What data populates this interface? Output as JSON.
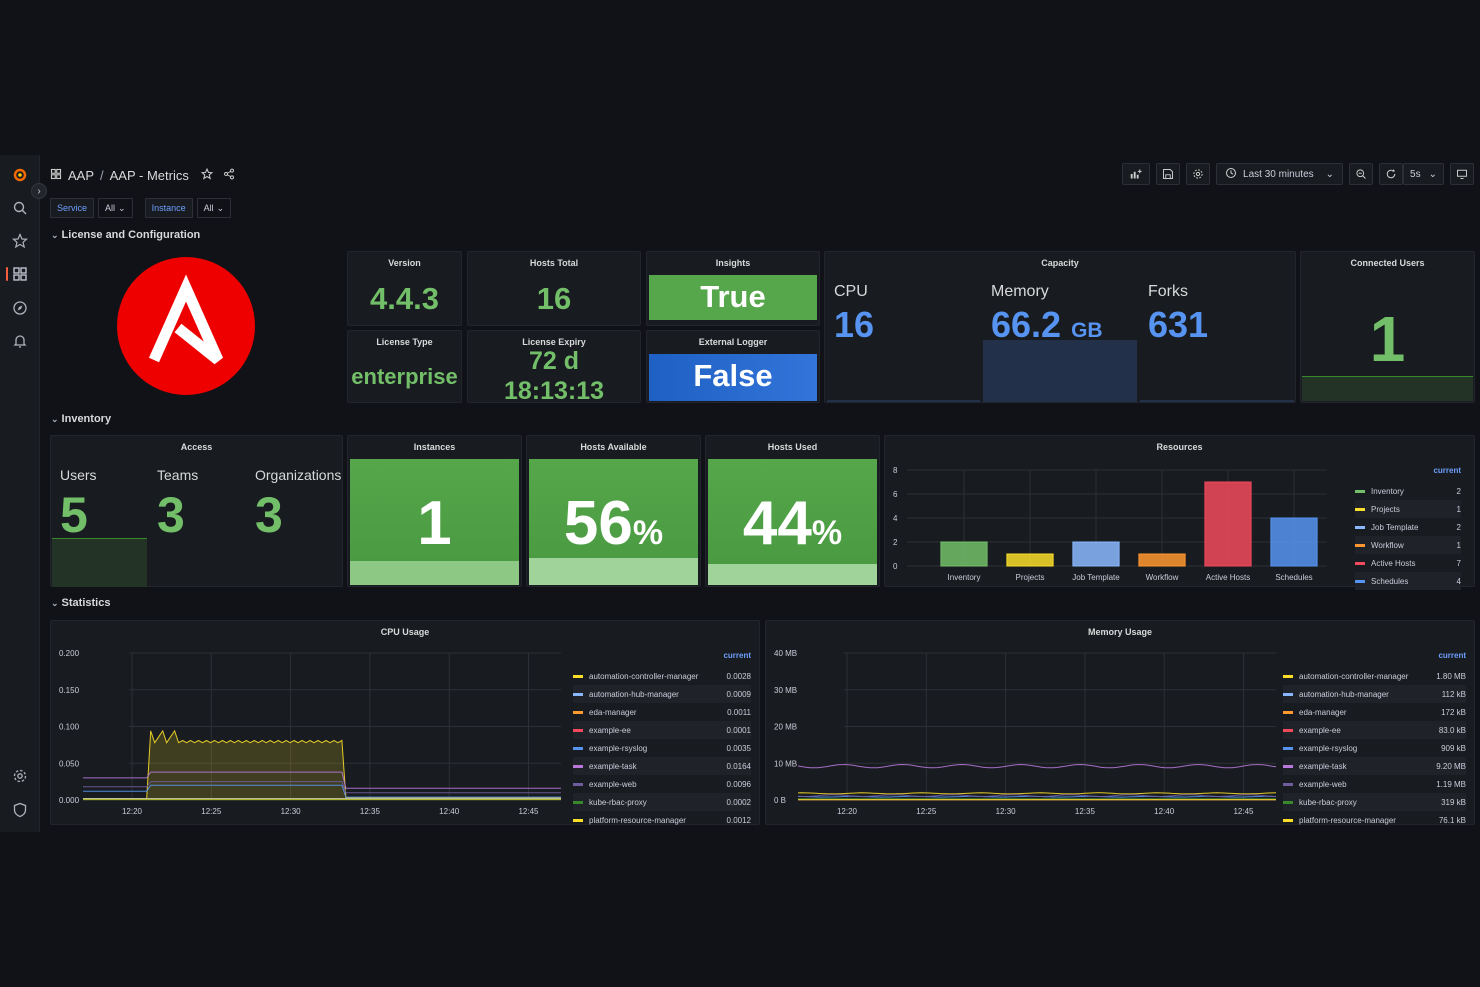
{
  "breadcrumb": {
    "folder": "AAP",
    "separator": "/",
    "title": "AAP - Metrics"
  },
  "toolbar": {
    "time_range": "Last 30 minutes",
    "refresh": "5s"
  },
  "variables": [
    {
      "label": "Service",
      "value": "All"
    },
    {
      "label": "Instance",
      "value": "All"
    }
  ],
  "rows": {
    "license": "License and Configuration",
    "inventory": "Inventory",
    "statistics": "Statistics"
  },
  "license": {
    "version": {
      "title": "Version",
      "value": "4.4.3"
    },
    "hosts_total": {
      "title": "Hosts Total",
      "value": "16"
    },
    "insights": {
      "title": "Insights",
      "value": "True",
      "color": "#56a64b"
    },
    "license_type": {
      "title": "License Type",
      "value": "enterprise"
    },
    "license_expiry": {
      "title": "License Expiry",
      "value_line1": "72 d",
      "value_line2": "18:13:13"
    },
    "external_logger": {
      "title": "External Logger",
      "value": "False",
      "color": "#1f60c4"
    },
    "capacity": {
      "title": "Capacity",
      "cpu": {
        "label": "CPU",
        "value": "16"
      },
      "memory": {
        "label": "Memory",
        "value": "66.2",
        "unit": "GB"
      },
      "forks": {
        "label": "Forks",
        "value": "631"
      }
    },
    "connected_users": {
      "title": "Connected Users",
      "value": "1"
    }
  },
  "inventory": {
    "access": {
      "title": "Access",
      "users": {
        "label": "Users",
        "value": "5"
      },
      "teams": {
        "label": "Teams",
        "value": "3"
      },
      "organizations": {
        "label": "Organizations",
        "value": "3"
      }
    },
    "instances": {
      "title": "Instances",
      "value": "1"
    },
    "hosts_available": {
      "title": "Hosts Available",
      "value": "56",
      "unit": "%",
      "fraction": 0.56
    },
    "hosts_used": {
      "title": "Hosts Used",
      "value": "44",
      "unit": "%",
      "fraction": 0.44
    },
    "resources": {
      "title": "Resources",
      "legend_header": "current"
    }
  },
  "chart_data": [
    {
      "type": "bar",
      "title": "Resources",
      "categories": [
        "Inventory",
        "Projects",
        "Job Template",
        "Workflow",
        "Active Hosts",
        "Schedules"
      ],
      "values": [
        2,
        1,
        2,
        1,
        7,
        4
      ],
      "colors": [
        "#73bf69",
        "#fade2a",
        "#8ab8ff",
        "#ff9830",
        "#f2495c",
        "#5794f2"
      ],
      "legend_values": [
        "2",
        "1",
        "2",
        "1",
        "7",
        "4"
      ],
      "ylim": [
        0,
        8
      ],
      "yticks": [
        "0",
        "2",
        "4",
        "6",
        "8"
      ]
    },
    {
      "type": "line",
      "title": "CPU Usage",
      "legend_header": "current",
      "x_ticks": [
        "12:20",
        "12:25",
        "12:30",
        "12:35",
        "12:40",
        "12:45"
      ],
      "y_ticks": [
        "0.000",
        "0.050",
        "0.100",
        "0.150",
        "0.200"
      ],
      "ylim": [
        0,
        0.2
      ],
      "series": [
        {
          "name": "automation-controller-manager",
          "current": "0.0028",
          "color": "#fade2a"
        },
        {
          "name": "automation-hub-manager",
          "current": "0.0009",
          "color": "#8ab8ff"
        },
        {
          "name": "eda-manager",
          "current": "0.0011",
          "color": "#ff9830"
        },
        {
          "name": "example-ee",
          "current": "0.0001",
          "color": "#f2495c"
        },
        {
          "name": "example-rsyslog",
          "current": "0.0035",
          "color": "#5794f2"
        },
        {
          "name": "example-task",
          "current": "0.0164",
          "color": "#b877d9"
        },
        {
          "name": "example-web",
          "current": "0.0096",
          "color": "#705da0"
        },
        {
          "name": "kube-rbac-proxy",
          "current": "0.0002",
          "color": "#37872d"
        },
        {
          "name": "platform-resource-manager",
          "current": "0.0012",
          "color": "#fade2a"
        }
      ]
    },
    {
      "type": "line",
      "title": "Memory Usage",
      "legend_header": "current",
      "x_ticks": [
        "12:20",
        "12:25",
        "12:30",
        "12:35",
        "12:40",
        "12:45"
      ],
      "y_ticks": [
        "0 B",
        "10 MB",
        "20 MB",
        "30 MB",
        "40 MB"
      ],
      "ylim": [
        0,
        40
      ],
      "series": [
        {
          "name": "automation-controller-manager",
          "current": "1.80 MB",
          "color": "#fade2a"
        },
        {
          "name": "automation-hub-manager",
          "current": "112 kB",
          "color": "#8ab8ff"
        },
        {
          "name": "eda-manager",
          "current": "172 kB",
          "color": "#ff9830"
        },
        {
          "name": "example-ee",
          "current": "83.0 kB",
          "color": "#f2495c"
        },
        {
          "name": "example-rsyslog",
          "current": "909 kB",
          "color": "#5794f2"
        },
        {
          "name": "example-task",
          "current": "9.20 MB",
          "color": "#b877d9"
        },
        {
          "name": "example-web",
          "current": "1.19 MB",
          "color": "#705da0"
        },
        {
          "name": "kube-rbac-proxy",
          "current": "319 kB",
          "color": "#37872d"
        },
        {
          "name": "platform-resource-manager",
          "current": "76.1 kB",
          "color": "#fade2a"
        }
      ]
    }
  ]
}
